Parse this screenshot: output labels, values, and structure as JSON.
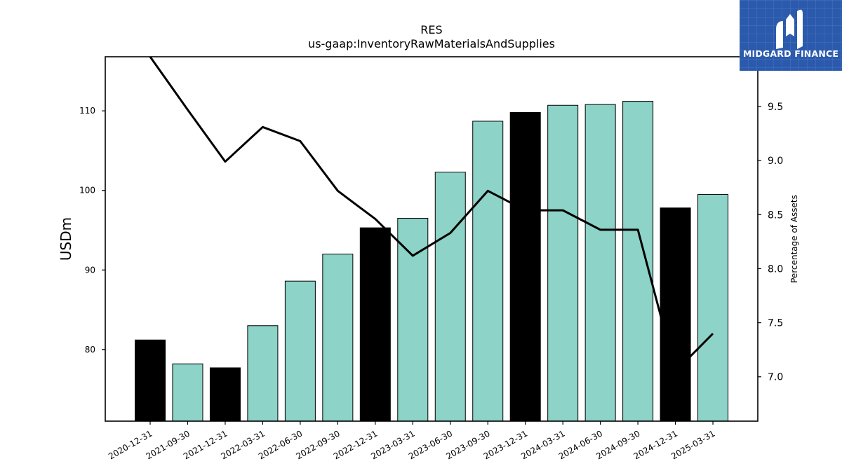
{
  "chart_data": {
    "type": "bar",
    "title": "RES",
    "subtitle": "us-gaap:InventoryRawMaterialsAndSupplies",
    "ylabel": "USDm",
    "y2label": "Percentage of Assets",
    "categories": [
      "2020-12-31",
      "2021-09-30",
      "2021-12-31",
      "2022-03-31",
      "2022-06-30",
      "2022-09-30",
      "2022-12-31",
      "2023-03-31",
      "2023-06-30",
      "2023-09-30",
      "2023-12-31",
      "2024-03-31",
      "2024-06-30",
      "2024-09-30",
      "2024-12-31",
      "2025-03-31"
    ],
    "series": [
      {
        "type": "bar",
        "axis": "left",
        "values": [
          81.2,
          78.2,
          77.7,
          83.0,
          88.6,
          92.0,
          95.3,
          96.5,
          102.3,
          108.7,
          109.8,
          110.7,
          110.8,
          111.2,
          97.8,
          99.5
        ],
        "colors": [
          "#000000",
          "#8dd3c7",
          "#000000",
          "#8dd3c7",
          "#8dd3c7",
          "#8dd3c7",
          "#000000",
          "#8dd3c7",
          "#8dd3c7",
          "#8dd3c7",
          "#000000",
          "#8dd3c7",
          "#8dd3c7",
          "#8dd3c7",
          "#000000",
          "#8dd3c7"
        ]
      },
      {
        "type": "line",
        "axis": "right",
        "color": "#000000",
        "values": [
          9.96,
          9.47,
          8.99,
          9.31,
          9.18,
          8.72,
          8.46,
          8.12,
          8.33,
          8.72,
          8.54,
          8.54,
          8.36,
          8.36,
          7.05,
          7.4
        ]
      }
    ],
    "ylim": [
      71,
      116.8
    ],
    "yticks": [
      80,
      90,
      100,
      110
    ],
    "y2lim": [
      6.59,
      9.96
    ],
    "y2ticks": [
      7.0,
      7.5,
      8.0,
      8.5,
      9.0,
      9.5
    ],
    "grid": false,
    "legend": "none"
  },
  "logo": {
    "text": "MIDGARD FINANCE",
    "background": "#2b5aad"
  }
}
